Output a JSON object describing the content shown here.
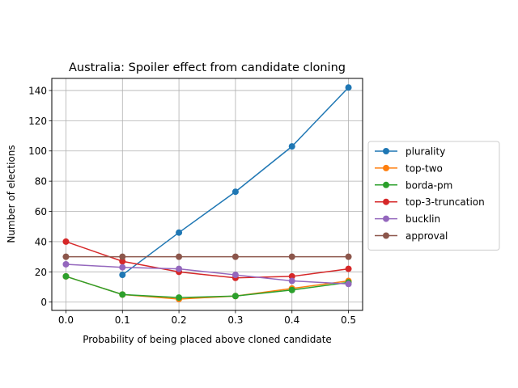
{
  "chart_data": {
    "type": "line",
    "title": "Australia: Spoiler effect from candidate cloning",
    "xlabel": "Probability of being placed above cloned candidate",
    "ylabel": "Number of elections",
    "x": [
      0.0,
      0.1,
      0.2,
      0.3,
      0.4,
      0.5
    ],
    "xticks": [
      "0.0",
      "0.1",
      "0.2",
      "0.3",
      "0.4",
      "0.5"
    ],
    "yticks": [
      "0",
      "20",
      "40",
      "60",
      "80",
      "100",
      "120",
      "140"
    ],
    "xlim": [
      -0.025,
      0.525
    ],
    "ylim": [
      -5.5,
      148
    ],
    "grid": true,
    "legend_position": "outside-right",
    "series": [
      {
        "name": "plurality",
        "color": "#1f77b4",
        "values": [
          null,
          18,
          46,
          73,
          103,
          142
        ]
      },
      {
        "name": "top-two",
        "color": "#ff7f0e",
        "values": [
          17,
          5,
          2,
          4,
          9,
          14
        ]
      },
      {
        "name": "borda-pm",
        "color": "#2ca02c",
        "values": [
          17,
          5,
          3,
          4,
          8,
          13
        ]
      },
      {
        "name": "top-3-truncation",
        "color": "#d62728",
        "values": [
          40,
          27,
          20,
          16,
          17,
          22
        ]
      },
      {
        "name": "bucklin",
        "color": "#9467bd",
        "values": [
          25,
          23,
          22,
          18,
          14,
          12
        ]
      },
      {
        "name": "approval",
        "color": "#8c564b",
        "values": [
          30,
          30,
          30,
          30,
          30,
          30
        ]
      }
    ]
  }
}
